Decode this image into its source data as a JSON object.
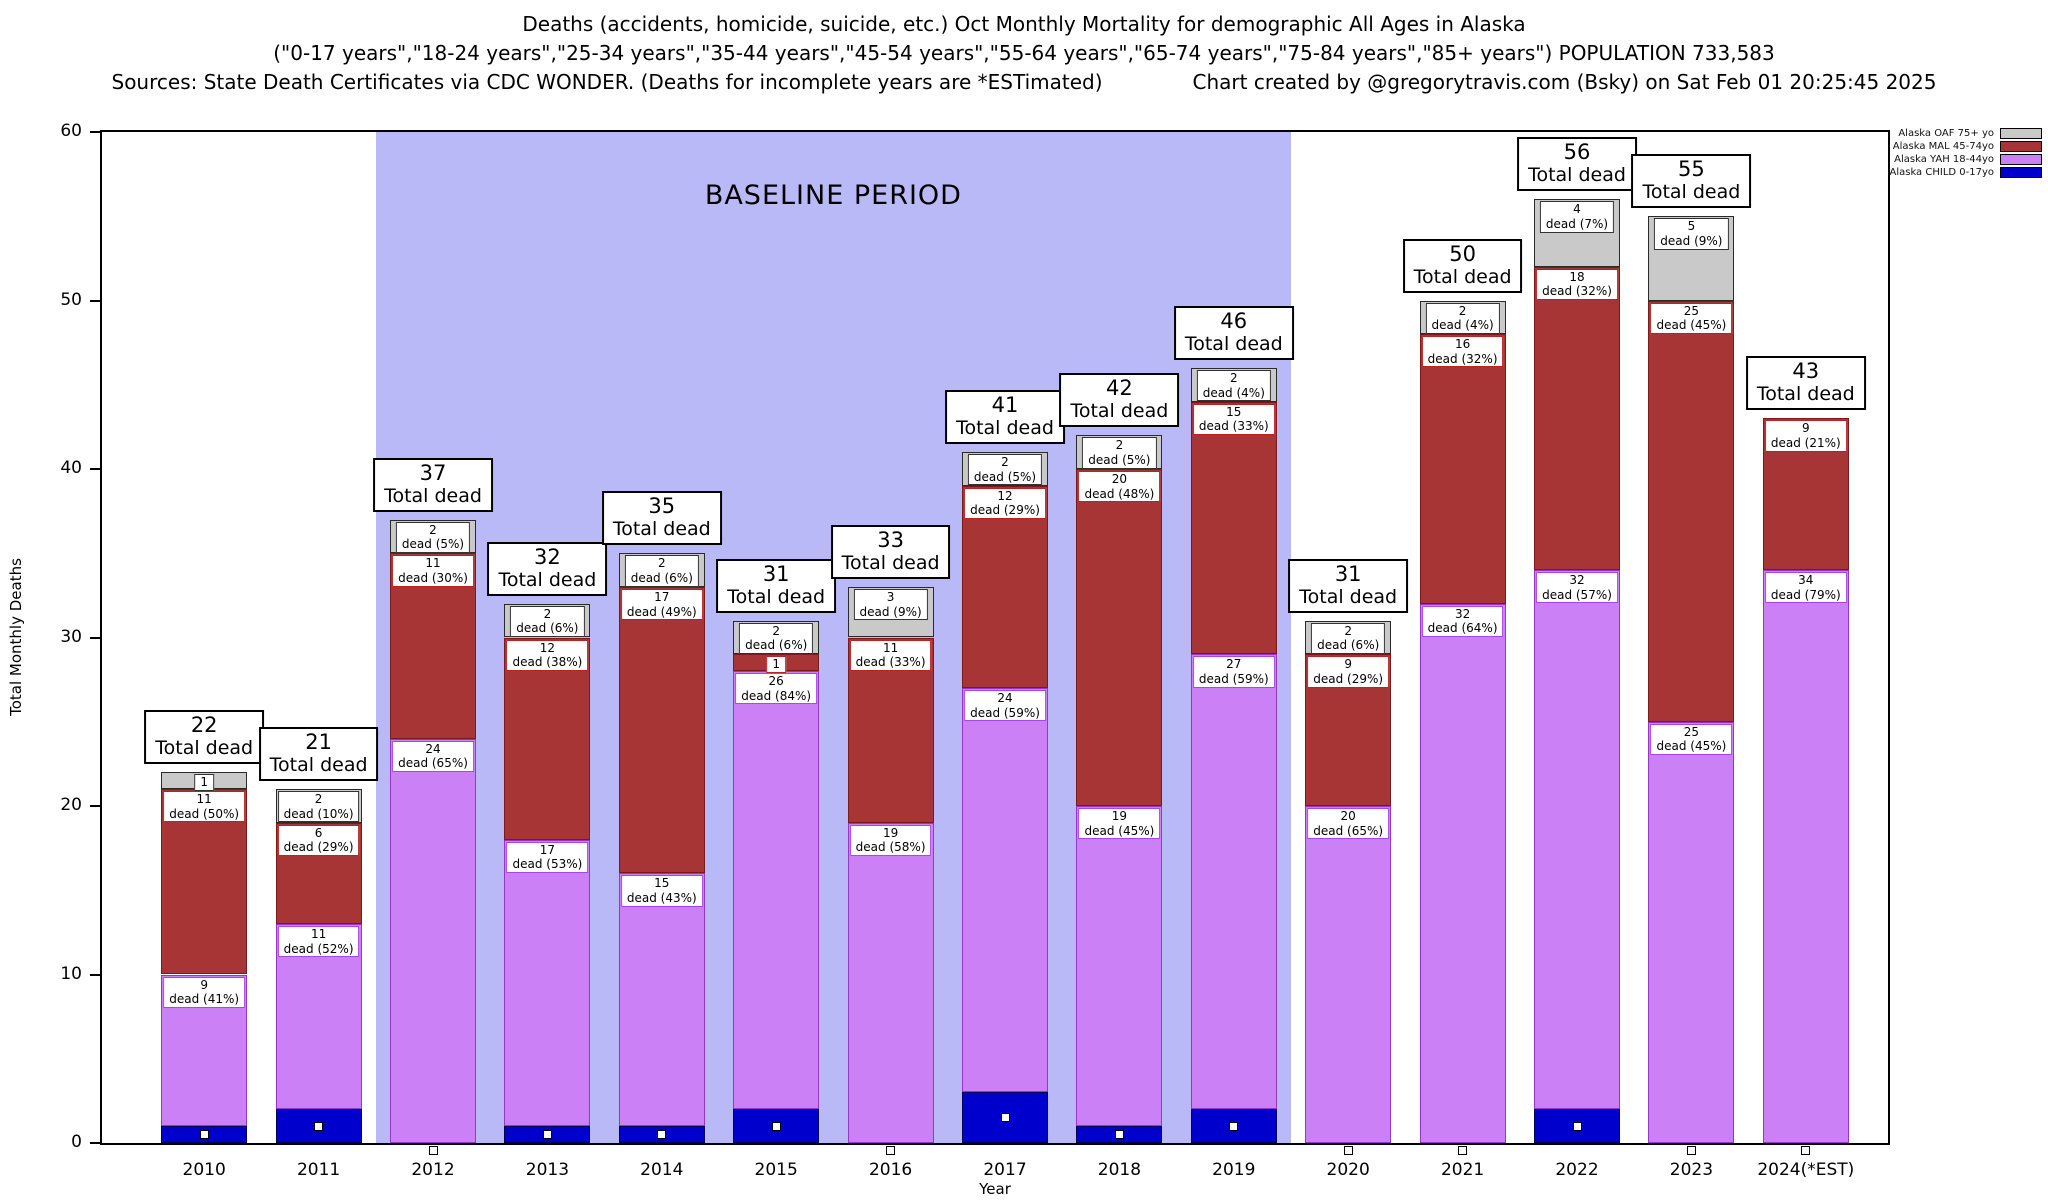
{
  "header": {
    "line1": "Deaths (accidents, homicide, suicide, etc.) Oct Monthly Mortality for demographic All Ages in Alaska",
    "line2": "(\"0-17 years\",\"18-24 years\",\"25-34 years\",\"35-44 years\",\"45-54 years\",\"55-64 years\",\"65-74 years\",\"75-84 years\",\"85+ years\") POPULATION 733,583",
    "line3_left": "Sources: State Death Certificates via CDC WONDER. (Deaths for incomplete years are *ESTimated)",
    "line3_right": "Chart created by @gregorytravis.com (Bsky) on Sat Feb 01 20:25:45 2025"
  },
  "chart_data": {
    "type": "bar",
    "subtype": "stacked-bar",
    "total_caption": "Total dead",
    "axes": {
      "y_label": "Total Monthly Deaths",
      "x_label": "Year",
      "y_ticks": [
        0,
        10,
        20,
        30,
        40,
        50,
        60
      ],
      "y_max": 60
    },
    "baseline": {
      "label": "BASELINE PERIOD",
      "start_year": "2012",
      "end_year": "2019",
      "color": "#b9b9f7"
    },
    "series": [
      {
        "id": "oaf",
        "legend": "Alaska OAF 75+ yo",
        "fill": "#c9c9c9",
        "edge": "#2a2a2a",
        "label_edge": "#333333",
        "text": "#111111"
      },
      {
        "id": "mal",
        "legend": "Alaska MAL 45-74yo",
        "fill": "#a83535",
        "edge": "#7a1a1a",
        "label_edge": "#bb2222",
        "text": "#111111"
      },
      {
        "id": "yah",
        "legend": "Alaska YAH 18-44yo",
        "fill": "#cc80f5",
        "edge": "#9933cc",
        "label_edge": "#aa44ee",
        "text": "#111111"
      },
      {
        "id": "child",
        "legend": "Alaska CHILD 0-17yo",
        "fill": "#0000cc",
        "edge": "#000055",
        "label_edge": "#000088",
        "text": "#111111"
      }
    ],
    "stack_order_bottom_to_top": [
      "child",
      "yah",
      "mal",
      "oaf"
    ],
    "bars": [
      {
        "year": "2010",
        "total": 22,
        "segments": [
          {
            "s": "child",
            "v": 1
          },
          {
            "s": "yah",
            "v": 9,
            "label": [
              "9",
              "dead (41%)"
            ]
          },
          {
            "s": "mal",
            "v": 11,
            "label": [
              "11",
              "dead (50%)"
            ]
          },
          {
            "s": "oaf",
            "v": 1,
            "label": [
              "1"
            ]
          }
        ]
      },
      {
        "year": "2011",
        "total": 21,
        "segments": [
          {
            "s": "child",
            "v": 2
          },
          {
            "s": "yah",
            "v": 11,
            "label": [
              "11",
              "dead (52%)"
            ]
          },
          {
            "s": "mal",
            "v": 6,
            "label": [
              "6",
              "dead (29%)"
            ]
          },
          {
            "s": "oaf",
            "v": 2,
            "label": [
              "2",
              "dead (10%)"
            ]
          }
        ]
      },
      {
        "year": "2012",
        "total": 37,
        "segments": [
          {
            "s": "child",
            "v": 0
          },
          {
            "s": "yah",
            "v": 24,
            "label": [
              "24",
              "dead (65%)"
            ]
          },
          {
            "s": "mal",
            "v": 11,
            "label": [
              "11",
              "dead (30%)"
            ]
          },
          {
            "s": "oaf",
            "v": 2,
            "label": [
              "2",
              "dead (5%)"
            ]
          }
        ]
      },
      {
        "year": "2013",
        "total": 32,
        "segments": [
          {
            "s": "child",
            "v": 1
          },
          {
            "s": "yah",
            "v": 17,
            "label": [
              "17",
              "dead (53%)"
            ]
          },
          {
            "s": "mal",
            "v": 12,
            "label": [
              "12",
              "dead (38%)"
            ]
          },
          {
            "s": "oaf",
            "v": 2,
            "label": [
              "2",
              "dead (6%)"
            ]
          }
        ]
      },
      {
        "year": "2014",
        "total": 35,
        "segments": [
          {
            "s": "child",
            "v": 1
          },
          {
            "s": "yah",
            "v": 15,
            "label": [
              "15",
              "dead (43%)"
            ]
          },
          {
            "s": "mal",
            "v": 17,
            "label": [
              "17",
              "dead (49%)"
            ]
          },
          {
            "s": "oaf",
            "v": 2,
            "label": [
              "2",
              "dead (6%)"
            ]
          }
        ]
      },
      {
        "year": "2015",
        "total": 31,
        "segments": [
          {
            "s": "child",
            "v": 2
          },
          {
            "s": "yah",
            "v": 26,
            "label": [
              "26",
              "dead (84%)"
            ]
          },
          {
            "s": "mal",
            "v": 1,
            "label": [
              "1"
            ]
          },
          {
            "s": "oaf",
            "v": 2,
            "label": [
              "2",
              "dead (6%)"
            ]
          }
        ]
      },
      {
        "year": "2016",
        "total": 33,
        "segments": [
          {
            "s": "child",
            "v": 0
          },
          {
            "s": "yah",
            "v": 19,
            "label": [
              "19",
              "dead (58%)"
            ]
          },
          {
            "s": "mal",
            "v": 11,
            "label": [
              "11",
              "dead (33%)"
            ]
          },
          {
            "s": "oaf",
            "v": 3,
            "label": [
              "3",
              "dead (9%)"
            ]
          }
        ]
      },
      {
        "year": "2017",
        "total": 41,
        "segments": [
          {
            "s": "child",
            "v": 3
          },
          {
            "s": "yah",
            "v": 24,
            "label": [
              "24",
              "dead (59%)"
            ]
          },
          {
            "s": "mal",
            "v": 12,
            "label": [
              "12",
              "dead (29%)"
            ]
          },
          {
            "s": "oaf",
            "v": 2,
            "label": [
              "2",
              "dead (5%)"
            ]
          }
        ]
      },
      {
        "year": "2018",
        "total": 42,
        "segments": [
          {
            "s": "child",
            "v": 1
          },
          {
            "s": "yah",
            "v": 19,
            "label": [
              "19",
              "dead (45%)"
            ]
          },
          {
            "s": "mal",
            "v": 20,
            "label": [
              "20",
              "dead (48%)"
            ]
          },
          {
            "s": "oaf",
            "v": 2,
            "label": [
              "2",
              "dead (5%)"
            ]
          }
        ]
      },
      {
        "year": "2019",
        "total": 46,
        "segments": [
          {
            "s": "child",
            "v": 2
          },
          {
            "s": "yah",
            "v": 27,
            "label": [
              "27",
              "dead (59%)"
            ]
          },
          {
            "s": "mal",
            "v": 15,
            "label": [
              "15",
              "dead (33%)"
            ]
          },
          {
            "s": "oaf",
            "v": 2,
            "label": [
              "2",
              "dead (4%)"
            ]
          }
        ]
      },
      {
        "year": "2020",
        "total": 31,
        "segments": [
          {
            "s": "child",
            "v": 0
          },
          {
            "s": "yah",
            "v": 20,
            "label": [
              "20",
              "dead (65%)"
            ]
          },
          {
            "s": "mal",
            "v": 9,
            "label": [
              "9",
              "dead (29%)"
            ]
          },
          {
            "s": "oaf",
            "v": 2,
            "label": [
              "2",
              "dead (6%)"
            ]
          }
        ]
      },
      {
        "year": "2021",
        "total": 50,
        "segments": [
          {
            "s": "child",
            "v": 0
          },
          {
            "s": "yah",
            "v": 32,
            "label": [
              "32",
              "dead (64%)"
            ]
          },
          {
            "s": "mal",
            "v": 16,
            "label": [
              "16",
              "dead (32%)"
            ]
          },
          {
            "s": "oaf",
            "v": 2,
            "label": [
              "2",
              "dead (4%)"
            ]
          }
        ]
      },
      {
        "year": "2022",
        "total": 56,
        "segments": [
          {
            "s": "child",
            "v": 2
          },
          {
            "s": "yah",
            "v": 32,
            "label": [
              "32",
              "dead (57%)"
            ]
          },
          {
            "s": "mal",
            "v": 18,
            "label": [
              "18",
              "dead (32%)"
            ]
          },
          {
            "s": "oaf",
            "v": 4,
            "label": [
              "4",
              "dead (7%)"
            ]
          }
        ]
      },
      {
        "year": "2023",
        "total": 55,
        "segments": [
          {
            "s": "child",
            "v": 0
          },
          {
            "s": "yah",
            "v": 25,
            "label": [
              "25",
              "dead (45%)"
            ]
          },
          {
            "s": "mal",
            "v": 25,
            "label": [
              "25",
              "dead (45%)"
            ]
          },
          {
            "s": "oaf",
            "v": 5,
            "label": [
              "5",
              "dead (9%)"
            ]
          }
        ]
      },
      {
        "year": "2024(*EST)",
        "total": 43,
        "segments": [
          {
            "s": "child",
            "v": 0
          },
          {
            "s": "yah",
            "v": 34,
            "label": [
              "34",
              "dead (79%)"
            ]
          },
          {
            "s": "mal",
            "v": 9,
            "label": [
              "9",
              "dead (21%)"
            ]
          },
          {
            "s": "oaf",
            "v": 0
          }
        ]
      }
    ]
  }
}
